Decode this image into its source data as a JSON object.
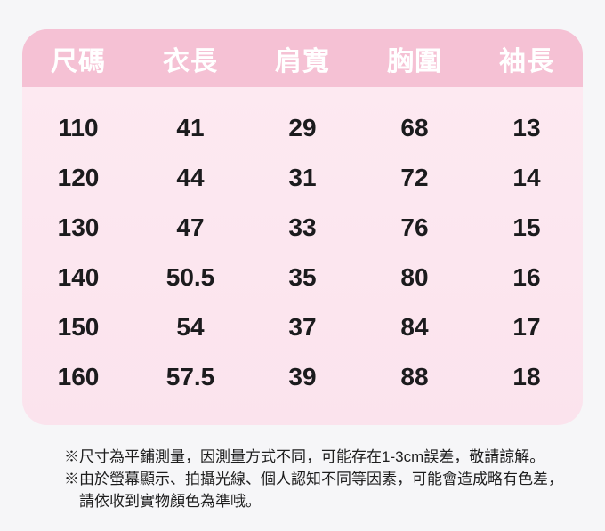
{
  "chart_data": {
    "type": "table",
    "title": "",
    "columns": [
      "尺碼",
      "衣長",
      "肩寬",
      "胸圍",
      "袖長"
    ],
    "rows": [
      [
        "110",
        "41",
        "29",
        "68",
        "13"
      ],
      [
        "120",
        "44",
        "31",
        "72",
        "14"
      ],
      [
        "130",
        "47",
        "33",
        "76",
        "15"
      ],
      [
        "140",
        "50.5",
        "35",
        "80",
        "16"
      ],
      [
        "150",
        "54",
        "37",
        "84",
        "17"
      ],
      [
        "160",
        "57.5",
        "39",
        "88",
        "18"
      ]
    ],
    "units": "cm"
  },
  "notes": {
    "lines": [
      "※尺寸為平鋪測量，因測量方式不同，可能存在1-3cm誤差，敬請諒解。",
      "※由於螢幕顯示、拍攝光線、個人認知不同等因素，可能會造成略有色差，",
      "請依收到實物顏色為準哦。"
    ]
  },
  "colors": {
    "page_bg": "#f6f6f8",
    "header_bg": "#f5c1d4",
    "body_bg_top": "#fde9f1",
    "body_bg_bottom": "#fbe3ed",
    "header_text": "#ffffff",
    "cell_text": "#1b1b1d",
    "note_text": "#1e1e1e"
  }
}
